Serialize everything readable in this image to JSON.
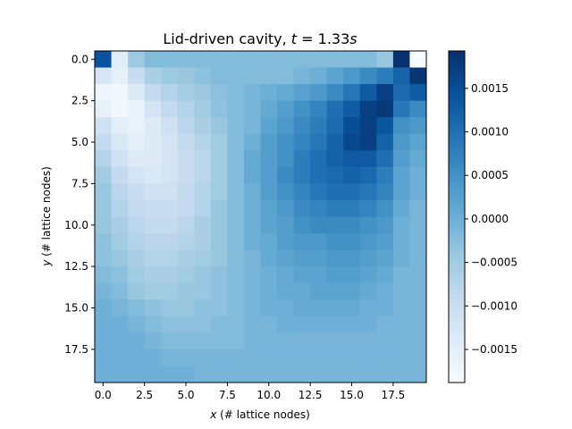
{
  "chart_data": {
    "type": "heatmap",
    "title": {
      "prefix": "Lid-driven cavity, ",
      "var": "t",
      "eq": " = ",
      "value": "1.33",
      "unit": "s"
    },
    "xlabel": {
      "var": "x",
      "rest": " (# lattice nodes)"
    },
    "ylabel": {
      "var": "y",
      "rest": " (# lattice nodes)"
    },
    "x_ticks": [
      "0.0",
      "2.5",
      "5.0",
      "7.5",
      "10.0",
      "12.5",
      "15.0",
      "17.5"
    ],
    "x_tick_values": [
      0,
      2.5,
      5,
      7.5,
      10,
      12.5,
      15,
      17.5
    ],
    "y_ticks": [
      "0.0",
      "2.5",
      "5.0",
      "7.5",
      "10.0",
      "12.5",
      "15.0",
      "17.5"
    ],
    "y_tick_values": [
      0,
      2.5,
      5,
      7.5,
      10,
      12.5,
      15,
      17.5
    ],
    "xlim": [
      -0.5,
      19.5
    ],
    "ylim": [
      19.5,
      -0.5
    ],
    "colormap": "Blues",
    "colorbar": {
      "ticks": [
        "0.0015",
        "0.0010",
        "0.0005",
        "0.0000",
        "−0.0005",
        "−0.0010",
        "−0.0015"
      ],
      "tick_values": [
        0.0015,
        0.001,
        0.0005,
        0,
        -0.0005,
        -0.001,
        -0.0015
      ],
      "vmin": -0.00188,
      "vmax": 0.00193
    },
    "grid": false,
    "values": [
      [
        0.00142,
        -0.00145,
        -0.00045,
        -0.0002,
        -0.0002,
        -0.0002,
        -0.0002,
        -0.0002,
        -0.0002,
        -0.0002,
        -0.0002,
        -0.0002,
        -0.0002,
        -0.0002,
        -0.0002,
        -0.0002,
        -0.0002,
        -0.0004,
        0.0019,
        -0.00188
      ],
      [
        -0.00125,
        -0.00155,
        -0.00098,
        -0.0006,
        -0.00045,
        -0.0004,
        -0.0003,
        -0.0002,
        -0.0002,
        -0.0002,
        -0.0002,
        -0.0002,
        -0.0001,
        0.0,
        0.0002,
        0.0004,
        0.0006,
        0.0008,
        0.00118,
        0.00185
      ],
      [
        -0.0017,
        -0.00175,
        -0.0014,
        -0.0009,
        -0.0007,
        -0.00052,
        -0.00042,
        -0.00028,
        -0.0002,
        -0.0001,
        0.0,
        0.0001,
        0.00025,
        0.0004,
        0.0006,
        0.0009,
        0.0013,
        0.0017,
        0.0011,
        0.0013
      ],
      [
        -0.00155,
        -0.00178,
        -0.0016,
        -0.0012,
        -0.0009,
        -0.0007,
        -0.0005,
        -0.0003,
        -0.0002,
        -0.0001,
        0.0001,
        0.0003,
        0.0005,
        0.0007,
        0.001,
        0.0013,
        0.0017,
        0.0018,
        0.0009,
        0.0006
      ],
      [
        -0.0011,
        -0.0015,
        -0.0016,
        -0.0014,
        -0.0011,
        -0.0008,
        -0.0006,
        -0.0004,
        -0.0002,
        -0.0001,
        0.0002,
        0.0004,
        0.0006,
        0.0008,
        0.0011,
        0.0015,
        0.0017,
        0.0014,
        0.0005,
        0.0004
      ],
      [
        -0.0009,
        -0.0013,
        -0.0015,
        -0.0014,
        -0.0012,
        -0.0009,
        -0.0007,
        -0.0005,
        -0.0002,
        0.0,
        0.0003,
        0.0005,
        0.0007,
        0.0009,
        0.0012,
        0.0016,
        0.0017,
        0.0012,
        0.0004,
        0.0002
      ],
      [
        -0.0007,
        -0.0011,
        -0.0014,
        -0.0014,
        -0.0012,
        -0.001,
        -0.0008,
        -0.0005,
        -0.0002,
        0.0001,
        0.0003,
        0.0005,
        0.0008,
        0.001,
        0.0012,
        0.0013,
        0.0013,
        0.001,
        0.0003,
        0.0001
      ],
      [
        -0.0005,
        -0.0009,
        -0.0012,
        -0.0013,
        -0.0012,
        -0.001,
        -0.0008,
        -0.0005,
        -0.0002,
        0.0001,
        0.0003,
        0.0006,
        0.0008,
        0.001,
        0.0011,
        0.0012,
        0.0011,
        0.0008,
        0.0002,
        0.0
      ],
      [
        -0.0004,
        -0.0008,
        -0.001,
        -0.0011,
        -0.0011,
        -0.0009,
        -0.0007,
        -0.0005,
        -0.0002,
        0.0,
        0.0003,
        0.0005,
        0.0007,
        0.0009,
        0.001,
        0.001,
        0.0009,
        0.0007,
        0.0002,
        0.0
      ],
      [
        -0.0004,
        -0.0007,
        -0.0009,
        -0.001,
        -0.001,
        -0.0009,
        -0.0007,
        -0.0004,
        -0.0002,
        0.0,
        0.0002,
        0.0004,
        0.0006,
        0.0007,
        0.0008,
        0.0008,
        0.0007,
        0.0005,
        0.0001,
        -0.0001
      ],
      [
        -0.0004,
        -0.0006,
        -0.0008,
        -0.0009,
        -0.0009,
        -0.0008,
        -0.0006,
        -0.0004,
        -0.0002,
        0.0,
        0.0002,
        0.0003,
        0.0005,
        0.0006,
        0.0006,
        0.0006,
        0.0005,
        0.0004,
        0.0,
        -0.0001
      ],
      [
        -0.0003,
        -0.0005,
        -0.0007,
        -0.0008,
        -0.0008,
        -0.0007,
        -0.0006,
        -0.0004,
        -0.0002,
        0.0,
        0.0001,
        0.0003,
        0.0004,
        0.0004,
        0.0005,
        0.0005,
        0.0004,
        0.0003,
        0.0,
        -0.0001
      ],
      [
        -0.0003,
        -0.0004,
        -0.0006,
        -0.0007,
        -0.0007,
        -0.0006,
        -0.0005,
        -0.0004,
        -0.0002,
        -0.0001,
        0.0001,
        0.0002,
        0.0003,
        0.0003,
        0.0004,
        0.0004,
        0.0003,
        0.0002,
        0.0,
        -0.0001
      ],
      [
        -0.0002,
        -0.0003,
        -0.0005,
        -0.0006,
        -0.0006,
        -0.0005,
        -0.0004,
        -0.0003,
        -0.0002,
        -0.0001,
        0.0,
        0.0001,
        0.0002,
        0.0002,
        0.0003,
        0.0003,
        0.0002,
        0.0001,
        -0.0001,
        -0.0001
      ],
      [
        -0.0001,
        -0.0002,
        -0.0004,
        -0.0005,
        -0.0005,
        -0.0004,
        -0.0004,
        -0.0003,
        -0.0002,
        -0.0001,
        0.0,
        0.0001,
        0.0001,
        0.0002,
        0.0002,
        0.0002,
        0.0001,
        0.0,
        -0.0001,
        -0.0001
      ],
      [
        0.0,
        -0.0001,
        -0.0002,
        -0.0003,
        -0.0004,
        -0.0004,
        -0.0003,
        -0.0003,
        -0.0002,
        -0.0001,
        0.0,
        0.0,
        0.0001,
        0.0001,
        0.0001,
        0.0001,
        0.0,
        0.0,
        -0.0001,
        -0.0001
      ],
      [
        0.0,
        0.0,
        -0.0001,
        -0.0002,
        -0.0003,
        -0.0003,
        -0.0003,
        -0.0002,
        -0.0002,
        -0.0001,
        -0.0001,
        0.0,
        0.0,
        0.0,
        0.0,
        0.0,
        0.0,
        -0.0001,
        -0.0001,
        -0.0001
      ],
      [
        0.0,
        0.0,
        0.0,
        -0.0001,
        -0.0002,
        -0.0002,
        -0.0002,
        -0.0002,
        -0.0002,
        -0.0001,
        -0.0001,
        -0.0001,
        -0.0001,
        -0.0001,
        -0.0001,
        -0.0001,
        -0.0001,
        -0.0001,
        -0.0001,
        -0.0001
      ],
      [
        0.0,
        0.0,
        0.0,
        0.0,
        -0.0001,
        -0.0001,
        -0.0001,
        -0.0001,
        -0.0001,
        -0.0001,
        -0.0001,
        -0.0001,
        -0.0001,
        -0.0001,
        -0.0001,
        -0.0001,
        -0.0001,
        -0.0001,
        -0.0001,
        -0.0001
      ],
      [
        0.0,
        0.0,
        0.0,
        0.0,
        0.0,
        0.0,
        -0.0001,
        -0.0001,
        -0.0001,
        -0.0001,
        -0.0001,
        -0.0001,
        -0.0001,
        -0.0001,
        -0.0001,
        -0.0001,
        -0.0001,
        -0.0001,
        -0.0001,
        -0.0001
      ]
    ]
  }
}
